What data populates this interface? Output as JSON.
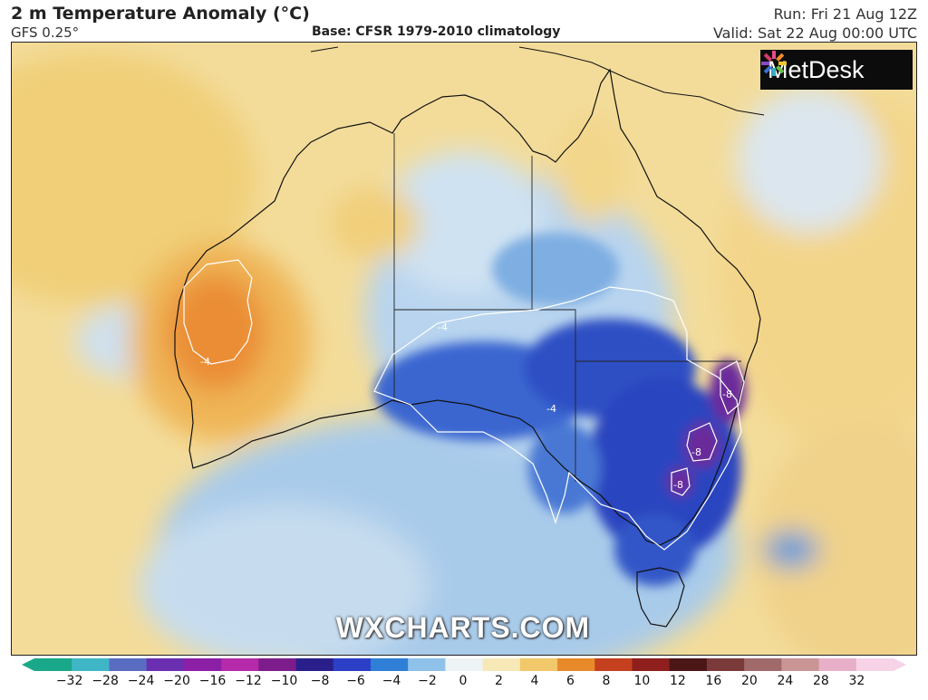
{
  "header": {
    "title": "2 m Temperature Anomaly (°C)",
    "model": "GFS 0.25°",
    "base": "Base: CFSR 1979-2010 climatology",
    "run": "Run: Fri 21 Aug 12Z",
    "valid": "Valid: Sat 22 Aug 00:00 UTC"
  },
  "logo": {
    "text": "MetDesk",
    "icon": "metdesk-burst-icon"
  },
  "watermark": "WXCHARTS.COM",
  "contour_labels": [
    "-4",
    "-4",
    "-4",
    "-8",
    "-8",
    "-8"
  ],
  "colorbar": {
    "ticks": [
      "−32",
      "−28",
      "−24",
      "−20",
      "−16",
      "−12",
      "−10",
      "−8",
      "−6",
      "−4",
      "−2",
      "0",
      "2",
      "4",
      "6",
      "8",
      "10",
      "12",
      "16",
      "20",
      "24",
      "28",
      "32"
    ],
    "colors": [
      "#1aa88a",
      "#3fb6c6",
      "#5a6cc2",
      "#6a2fb0",
      "#8b1fa6",
      "#b42aa8",
      "#7d1d8c",
      "#2a1f8a",
      "#2b3fc7",
      "#2f7fd6",
      "#8fc2ea",
      "#eef3f5",
      "#f7e8b8",
      "#f1c86a",
      "#e88a2a",
      "#c5401f",
      "#8e1f1c",
      "#4a1616",
      "#7a3a3a",
      "#a06a6a",
      "#c99595",
      "#e8b0c8",
      "#f6d3e6"
    ]
  },
  "colors": {
    "warm": "#f1cf7a",
    "hot": "#e9863a",
    "cool": "#9ec7e8",
    "cold": "#2d55c9",
    "very_cold": "#6a2a9a"
  }
}
